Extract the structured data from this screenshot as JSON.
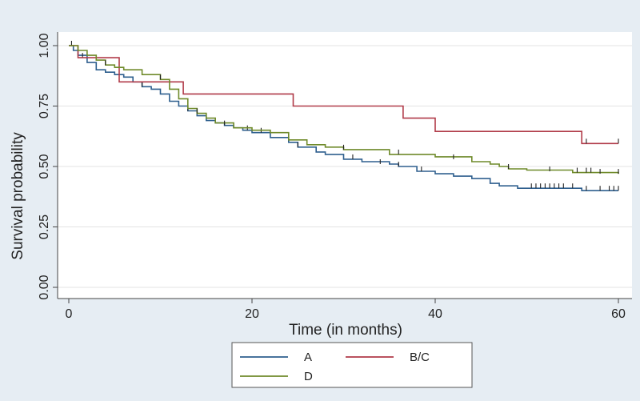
{
  "chart_data": {
    "type": "line",
    "title": "",
    "xlabel": "Time (in months)",
    "ylabel": "Survival probability",
    "xlim": [
      0,
      60
    ],
    "ylim": [
      0,
      1
    ],
    "x_ticks": [
      0,
      20,
      40,
      60
    ],
    "y_ticks": [
      0.0,
      0.25,
      0.5,
      0.75,
      1.0
    ],
    "x_tick_labels": [
      "0",
      "20",
      "40",
      "60"
    ],
    "y_tick_labels": [
      "0.00",
      "0.25",
      "0.50",
      "0.75",
      "1.00"
    ],
    "grid": true,
    "legend_position": "bottom",
    "series": [
      {
        "name": "A",
        "color": "#2e5f8e",
        "x": [
          0,
          0.5,
          1,
          2,
          3,
          4,
          5,
          6,
          7,
          8,
          9,
          10,
          11,
          12,
          13,
          14,
          15,
          16,
          17,
          18,
          19,
          20,
          22,
          24,
          25,
          27,
          28,
          30,
          32,
          35,
          36,
          38,
          40,
          42,
          44,
          46,
          47,
          48,
          49,
          50,
          52,
          54,
          56,
          58,
          60
        ],
        "y": [
          1.0,
          0.98,
          0.96,
          0.93,
          0.9,
          0.89,
          0.88,
          0.87,
          0.85,
          0.83,
          0.82,
          0.8,
          0.77,
          0.75,
          0.73,
          0.71,
          0.69,
          0.68,
          0.67,
          0.66,
          0.65,
          0.64,
          0.62,
          0.6,
          0.58,
          0.56,
          0.55,
          0.53,
          0.52,
          0.51,
          0.5,
          0.48,
          0.47,
          0.46,
          0.45,
          0.43,
          0.42,
          0.42,
          0.41,
          0.41,
          0.41,
          0.41,
          0.4,
          0.4,
          0.4
        ],
        "censor_x": [
          1.5,
          8,
          13,
          16,
          19.5,
          21,
          25,
          31,
          34,
          36,
          38.5,
          50.5,
          51,
          51.5,
          52,
          52.5,
          53,
          53.5,
          54,
          55,
          56.5,
          58,
          59,
          59.5,
          60
        ],
        "censor_y": [
          0.95,
          0.83,
          0.73,
          0.68,
          0.65,
          0.64,
          0.58,
          0.53,
          0.51,
          0.5,
          0.48,
          0.41,
          0.41,
          0.41,
          0.41,
          0.41,
          0.41,
          0.41,
          0.41,
          0.41,
          0.4,
          0.4,
          0.4,
          0.4,
          0.4
        ]
      },
      {
        "name": "B/C",
        "color": "#b03a48",
        "x": [
          0,
          1,
          5.5,
          12.5,
          24.5,
          36.5,
          40,
          56,
          60
        ],
        "y": [
          1.0,
          0.95,
          0.85,
          0.8,
          0.75,
          0.7,
          0.645,
          0.595,
          0.595
        ],
        "censor_x": [
          0.3,
          56.5,
          60
        ],
        "censor_y": [
          1.0,
          0.595,
          0.595
        ]
      },
      {
        "name": "D",
        "color": "#6f8a2a",
        "x": [
          0,
          1,
          2,
          3,
          4,
          5,
          6,
          8,
          10,
          11,
          12,
          13,
          14,
          15,
          16,
          18,
          20,
          22,
          24,
          26,
          28,
          30,
          35,
          40,
          44,
          46,
          47,
          48,
          50,
          55,
          60
        ],
        "y": [
          1.0,
          0.98,
          0.96,
          0.94,
          0.92,
          0.91,
          0.9,
          0.88,
          0.86,
          0.82,
          0.78,
          0.74,
          0.72,
          0.7,
          0.68,
          0.66,
          0.65,
          0.64,
          0.61,
          0.59,
          0.58,
          0.57,
          0.55,
          0.54,
          0.52,
          0.51,
          0.5,
          0.49,
          0.485,
          0.475,
          0.47
        ],
        "censor_x": [
          4,
          10,
          14,
          17,
          30,
          36,
          42,
          48,
          52.5,
          55.5,
          56.5,
          57,
          58,
          60
        ],
        "censor_y": [
          0.92,
          0.86,
          0.72,
          0.67,
          0.57,
          0.55,
          0.53,
          0.49,
          0.48,
          0.475,
          0.475,
          0.475,
          0.47,
          0.47
        ]
      }
    ]
  }
}
